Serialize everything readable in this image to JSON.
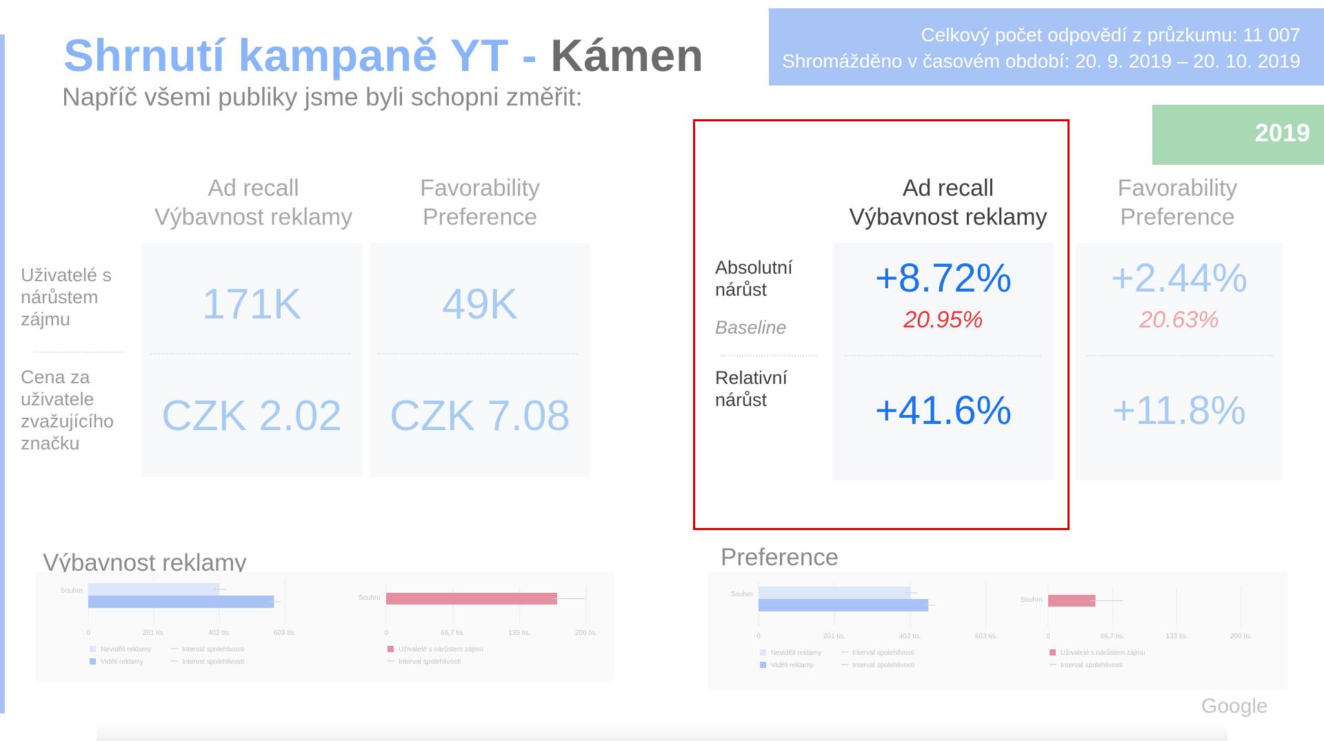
{
  "header": {
    "title_part1": "Shrnutí kampaně YT - ",
    "title_part2": "Kámen",
    "subtitle": "Napříč všemi publiky jsme byli schopni změřit:"
  },
  "survey_info": {
    "line1": "Celkový počet odpovědí z průzkumu: 11 007",
    "line2": "Shromážděno v časovém období: 20. 9. 2019 – 20. 10. 2019"
  },
  "year_tag": "2019",
  "left_table": {
    "columns": [
      {
        "line1": "Ad recall",
        "line2": "Výbavnost reklamy"
      },
      {
        "line1": "Favorability",
        "line2": "Preference"
      }
    ],
    "rows": [
      {
        "label": "Uživatelé s nárůstem zájmu",
        "values": [
          "171K",
          "49K"
        ]
      },
      {
        "label": "Cena za uživatele zvažujícího značku",
        "values": [
          "CZK 2.02",
          "CZK 7.08"
        ]
      }
    ]
  },
  "right_table": {
    "columns": [
      {
        "line1": "Ad recall",
        "line2": "Výbavnost reklamy"
      },
      {
        "line1": "Favorability",
        "line2": "Preference"
      }
    ],
    "absolute_label": "Absolutní nárůst",
    "baseline_label": "Baseline",
    "relative_label": "Relativní nárůst",
    "absolute_values": [
      "+8.72%",
      "+2.44%"
    ],
    "baseline_values": [
      "20.95%",
      "20.63%"
    ],
    "relative_values": [
      "+41.6%",
      "+11.8%"
    ]
  },
  "charts_section": {
    "left_title": "Výbavnost reklamy",
    "right_title": "Preference"
  },
  "chart_data": [
    {
      "type": "bar",
      "title": "Výbavnost reklamy",
      "categories": [
        "Souhrn"
      ],
      "series": [
        {
          "name": "Neviděli reklamy",
          "values": [
            402000
          ],
          "color": "#dde7fb"
        },
        {
          "name": "Viděli reklamy",
          "values": [
            570000
          ],
          "color": "#aac3f6"
        }
      ],
      "xlim": [
        0,
        603000
      ],
      "ticks": [
        "0",
        "201 tis.",
        "402 tis.",
        "603 tis."
      ],
      "legend": [
        "Neviděli reklamy",
        "Interval spolehlivosti",
        "Viděli reklamy",
        "Interval spolehlivosti"
      ],
      "legend_position": "bottom"
    },
    {
      "type": "bar",
      "title": "",
      "categories": [
        "Souhrn"
      ],
      "series": [
        {
          "name": "Uživatelé s nárůstem zájmu",
          "values": [
            171000
          ],
          "color": "#e58fa3"
        }
      ],
      "xlim": [
        0,
        200000
      ],
      "ticks": [
        "0",
        "66,7 tis.",
        "133 tis.",
        "200 tis."
      ],
      "legend": [
        "Uživatelé s nárůstem zájmu",
        "Interval spolehlivosti"
      ],
      "legend_position": "bottom"
    },
    {
      "type": "bar",
      "title": "Preference",
      "categories": [
        "Souhrn"
      ],
      "series": [
        {
          "name": "Neviděli reklamy",
          "values": [
            402000
          ],
          "color": "#dde7fb"
        },
        {
          "name": "Viděli reklamy",
          "values": [
            450000
          ],
          "color": "#aac3f6"
        }
      ],
      "xlim": [
        0,
        603000
      ],
      "ticks": [
        "0",
        "201 tis.",
        "402 tis.",
        "603 tis."
      ],
      "legend": [
        "Neviděli reklamy",
        "Interval spolehlivosti",
        "Viděli reklamy",
        "Interval spolehlivosti"
      ],
      "legend_position": "bottom"
    },
    {
      "type": "bar",
      "title": "",
      "categories": [
        "Souhrn"
      ],
      "series": [
        {
          "name": "Uživatelé s nárůstem zájmu",
          "values": [
            49000
          ],
          "color": "#e58fa3"
        }
      ],
      "xlim": [
        0,
        200000
      ],
      "ticks": [
        "0",
        "66,7 tis.",
        "133 tis.",
        "200 tis."
      ],
      "legend": [
        "Uživatelé s nárůstem zájmu",
        "Interval spolehlivosti"
      ],
      "legend_position": "bottom"
    }
  ],
  "footer": {
    "google_logo": "Google"
  }
}
